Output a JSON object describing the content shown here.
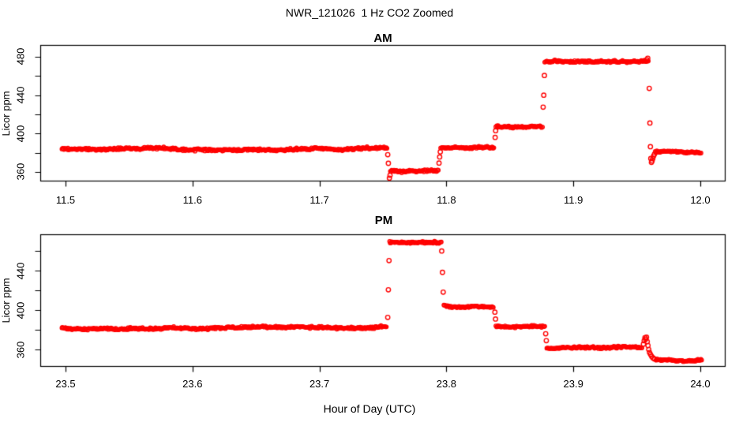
{
  "title": "NWR_121026  1 Hz CO2 Zoomed",
  "x_axis_label": "Hour of Day (UTC)",
  "colors": {
    "points": "#FF0000",
    "axis": "#000000",
    "background": "#FFFFFF",
    "text": "#000000"
  },
  "chart_data": [
    {
      "type": "scatter",
      "title": "AM",
      "ylabel": "Licor ppm",
      "point_style": "open-circle",
      "legend": "none",
      "grid": false,
      "x_range": [
        11.4804,
        12.0196
      ],
      "y_range": [
        350.5,
        491.9
      ],
      "x_ticks": [
        11.5,
        11.6,
        11.7,
        11.8,
        11.9,
        12.0
      ],
      "x_tick_labels": [
        "11.5",
        "11.6",
        "11.7",
        "11.8",
        "11.9",
        "12.0"
      ],
      "y_ticks": [
        360,
        380,
        400,
        420,
        440,
        460,
        480
      ],
      "y_tick_labels": [
        {
          "value": 360,
          "label": "360"
        },
        {
          "value": 400,
          "label": "400"
        },
        {
          "value": 440,
          "label": "440"
        },
        {
          "value": 480,
          "label": "480"
        }
      ],
      "segments": [
        {
          "x_start": 11.497,
          "x_end": 11.7535,
          "co2_ppm": 384.0,
          "noise_ppm": 1.4
        },
        {
          "x_start": 11.7558,
          "x_end": 11.794,
          "co2_ppm": 360.8,
          "noise_ppm": 1.3
        },
        {
          "x_start": 11.7955,
          "x_end": 11.838,
          "co2_ppm": 385.0,
          "noise_ppm": 1.3
        },
        {
          "x_start": 11.839,
          "x_end": 11.876,
          "co2_ppm": 407.5,
          "noise_ppm": 1.2
        },
        {
          "x_start": 11.8775,
          "x_end": 11.9595,
          "co2_ppm": 474.5,
          "noise_ppm": 1.4
        },
        {
          "x_start": 11.9645,
          "x_end": 12.001,
          "co2_ppm": 381.0,
          "noise_ppm": 1.1
        }
      ],
      "transition_points": [
        [
          11.7538,
          378.0
        ],
        [
          11.7543,
          369.0
        ],
        [
          11.7551,
          353.5
        ],
        [
          11.7556,
          356.5
        ],
        [
          11.7942,
          369.3
        ],
        [
          11.7947,
          375.6
        ],
        [
          11.7952,
          381.0
        ],
        [
          11.8384,
          396.0
        ],
        [
          11.8388,
          403.0
        ],
        [
          11.8762,
          427.5
        ],
        [
          11.8767,
          440.0
        ],
        [
          11.8772,
          460.5
        ],
        [
          11.9578,
          477.0
        ],
        [
          11.9586,
          478.5
        ],
        [
          11.9598,
          447.0
        ],
        [
          11.9603,
          411.0
        ],
        [
          11.9607,
          386.3
        ],
        [
          11.961,
          374.0
        ],
        [
          11.9615,
          370.0
        ],
        [
          11.962,
          371.5
        ],
        [
          11.9626,
          374.0
        ],
        [
          11.9632,
          376.5
        ],
        [
          11.9639,
          378.5
        ]
      ]
    },
    {
      "type": "scatter",
      "title": "PM",
      "ylabel": "Licor ppm",
      "point_style": "open-circle",
      "legend": "none",
      "grid": false,
      "x_range": [
        23.4804,
        24.0196
      ],
      "y_range": [
        342.8,
        476.8
      ],
      "x_ticks": [
        23.5,
        23.6,
        23.7,
        23.8,
        23.9,
        24.0
      ],
      "x_tick_labels": [
        "23.5",
        "23.6",
        "23.7",
        "23.8",
        "23.9",
        "24.0"
      ],
      "y_ticks": [
        360,
        380,
        400,
        420,
        440,
        460
      ],
      "y_tick_labels": [
        {
          "value": 360,
          "label": "360"
        },
        {
          "value": 400,
          "label": "400"
        },
        {
          "value": 440,
          "label": "440"
        }
      ],
      "segments": [
        {
          "x_start": 23.497,
          "x_end": 23.753,
          "co2_ppm": 382.0,
          "noise_ppm": 1.4
        },
        {
          "x_start": 23.7552,
          "x_end": 23.796,
          "co2_ppm": 469.0,
          "noise_ppm": 1.3
        },
        {
          "x_start": 23.798,
          "x_end": 23.8375,
          "co2_ppm": 404.5,
          "noise_ppm": 1.2
        },
        {
          "x_start": 23.839,
          "x_end": 23.8775,
          "co2_ppm": 384.0,
          "noise_ppm": 1.2
        },
        {
          "x_start": 23.879,
          "x_end": 23.9545,
          "co2_ppm": 361.5,
          "noise_ppm": 1.2
        },
        {
          "x_start": 23.965,
          "x_end": 24.001,
          "co2_ppm": 349.5,
          "noise_ppm": 1.0
        }
      ],
      "transition_points": [
        [
          23.7538,
          392.7
        ],
        [
          23.7543,
          420.8
        ],
        [
          23.7548,
          450.5
        ],
        [
          23.7963,
          460.2
        ],
        [
          23.7969,
          438.5
        ],
        [
          23.7975,
          418.4
        ],
        [
          23.8382,
          398.0
        ],
        [
          23.8387,
          391.0
        ],
        [
          23.8782,
          376.0
        ],
        [
          23.8787,
          369.0
        ],
        [
          23.9552,
          365.5
        ],
        [
          23.9558,
          369.0
        ],
        [
          23.9564,
          372.0
        ],
        [
          23.957,
          370.5
        ],
        [
          23.9576,
          372.5
        ],
        [
          23.9582,
          368.0
        ],
        [
          23.9588,
          364.0
        ],
        [
          23.9594,
          360.0
        ],
        [
          23.96,
          357.0
        ],
        [
          23.9608,
          355.0
        ],
        [
          23.9617,
          353.0
        ],
        [
          23.9627,
          351.5
        ],
        [
          23.9638,
          350.5
        ]
      ]
    }
  ]
}
